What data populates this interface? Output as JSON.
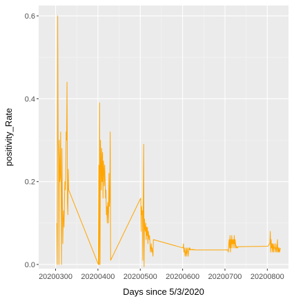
{
  "colors": {
    "panel_bg": "#ebebeb",
    "grid_major": "#ffffff",
    "grid_minor": "#f5f5f5",
    "line": "#ffa500",
    "tick": "#333333"
  },
  "chart_data": {
    "type": "line",
    "title": "",
    "xlabel": "Days since 5/3/2020",
    "ylabel": "positivity_Rate",
    "xlim": [
      20200260,
      20200850
    ],
    "ylim": [
      -0.01,
      0.625
    ],
    "x_ticks": [
      20200300,
      20200400,
      20200500,
      20200600,
      20200700,
      20200800
    ],
    "x_tick_labels": [
      "20200300",
      "20200400",
      "20200500",
      "20200600",
      "20200700",
      "20200800"
    ],
    "y_ticks": [
      0.0,
      0.2,
      0.4,
      0.6
    ],
    "y_tick_labels": [
      "0.0",
      "0.2",
      "0.4",
      "0.6"
    ],
    "grid": true,
    "legend": "none",
    "series": [
      {
        "x": [
          20200303,
          20200304,
          20200305,
          20200306,
          20200307,
          20200308,
          20200309,
          20200310,
          20200311,
          20200312,
          20200313,
          20200314,
          20200315,
          20200316,
          20200317,
          20200318,
          20200319,
          20200320,
          20200321,
          20200322,
          20200323,
          20200324,
          20200325,
          20200326,
          20200327,
          20200328,
          20200329,
          20200330,
          20200331,
          20200401,
          20200402,
          20200403,
          20200404,
          20200405,
          20200406,
          20200407,
          20200408,
          20200409,
          20200410,
          20200411,
          20200412,
          20200413,
          20200414,
          20200415,
          20200416,
          20200417,
          20200418,
          20200419,
          20200420,
          20200421,
          20200422,
          20200423,
          20200424,
          20200425,
          20200426,
          20200427,
          20200428,
          20200429,
          20200430,
          20200501,
          20200502,
          20200503,
          20200504,
          20200505,
          20200506,
          20200507,
          20200508,
          20200509,
          20200510,
          20200511,
          20200512,
          20200513,
          20200514,
          20200515,
          20200516,
          20200517,
          20200518,
          20200519,
          20200520,
          20200521,
          20200522,
          20200523,
          20200524,
          20200525,
          20200526,
          20200527,
          20200528,
          20200529,
          20200530,
          20200531,
          20200601,
          20200602,
          20200603,
          20200604,
          20200605,
          20200606,
          20200607,
          20200608,
          20200609,
          20200610,
          20200611,
          20200612,
          20200613,
          20200614,
          20200615,
          20200616,
          20200617,
          20200618,
          20200619,
          20200620,
          20200621,
          20200622,
          20200623,
          20200624,
          20200625,
          20200626,
          20200627,
          20200628,
          20200629,
          20200630,
          20200701,
          20200702,
          20200703,
          20200704,
          20200705,
          20200706,
          20200707,
          20200708,
          20200709,
          20200710,
          20200711,
          20200712,
          20200713,
          20200714,
          20200715,
          20200716,
          20200717,
          20200718,
          20200719,
          20200720,
          20200721,
          20200722,
          20200723,
          20200724,
          20200725,
          20200726,
          20200727,
          20200728,
          20200729,
          20200730,
          20200731,
          20200801,
          20200802,
          20200803,
          20200804,
          20200805,
          20200806,
          20200807,
          20200808,
          20200809,
          20200810,
          20200811,
          20200812,
          20200813,
          20200814,
          20200815,
          20200816,
          20200817,
          20200818,
          20200819,
          20200820,
          20200821,
          20200822,
          20200823,
          20200824,
          20200825,
          20200826,
          20200827,
          20200828,
          20200829,
          20200830,
          20200831
        ],
        "y": [
          0.1,
          0.0,
          0.6,
          0.3,
          0.26,
          0.0,
          0.3,
          0.2,
          0.21,
          0.32,
          0.19,
          0.0,
          0.28,
          0.16,
          0.05,
          0.11,
          0.13,
          0.09,
          0.16,
          0.2,
          0.18,
          0.21,
          0.32,
          0.3,
          0.44,
          0.15,
          0.12,
          0.23,
          0.18,
          0.0,
          0.24,
          0.0,
          0.39,
          0.0,
          0.3,
          0.25,
          0.18,
          0.28,
          0.2,
          0.27,
          0.16,
          0.25,
          0.23,
          0.19,
          0.24,
          0.2,
          0.16,
          0.18,
          0.12,
          0.14,
          0.1,
          0.15,
          0.13,
          0.1,
          0.22,
          0.14,
          0.16,
          0.32,
          0.01,
          0.16,
          0.08,
          0.14,
          0.12,
          0.13,
          0.01,
          0.14,
          0.29,
          -0.005,
          0.11,
          0.09,
          0.08,
          0.1,
          0.06,
          0.09,
          0.07,
          0.09,
          0.05,
          0.08,
          0.07,
          0.06,
          0.07,
          0.05,
          0.03,
          0.04,
          0.05,
          0.03,
          0.04,
          0.03,
          0.02,
          0.06,
          0.04,
          0.05,
          0.03,
          0.04,
          0.03,
          0.02,
          0.03,
          0.04,
          0.02,
          0.03,
          0.04,
          0.03,
          0.02,
          0.03,
          0.04,
          0.035,
          0.04,
          0.036,
          0.035,
          0.037,
          0.036,
          0.035,
          0.036,
          0.035,
          0.037,
          0.036,
          0.035,
          0.035,
          0.036,
          0.035,
          0.035,
          0.036,
          0.035,
          0.035,
          0.034,
          0.035,
          0.036,
          0.03,
          0.05,
          0.06,
          0.04,
          0.07,
          0.03,
          0.06,
          0.04,
          0.07,
          0.05,
          0.06,
          0.04,
          0.06,
          0.05,
          0.07,
          0.04,
          0.06,
          0.05,
          0.04,
          0.045,
          0.04,
          0.042,
          0.04,
          0.043,
          0.044,
          0.045,
          0.046,
          0.048,
          0.05,
          0.05,
          0.08,
          0.03,
          0.06,
          0.04,
          0.05,
          0.03,
          0.05,
          0.04,
          0.03,
          0.05,
          0.04,
          0.04,
          0.03,
          0.05,
          0.04,
          0.03,
          0.04,
          0.06,
          0.03,
          0.04,
          0.03,
          0.04,
          0.03,
          0.035,
          0.04
        ]
      }
    ]
  }
}
